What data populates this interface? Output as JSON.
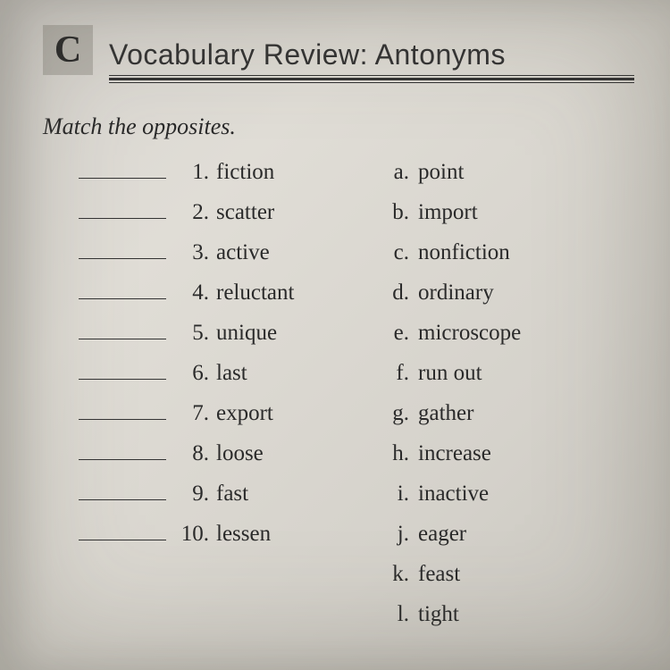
{
  "section_letter": "C",
  "title": "Vocabulary Review: Antonyms",
  "instruction": "Match the opposites.",
  "left_items": [
    {
      "num": "1.",
      "word": "fiction"
    },
    {
      "num": "2.",
      "word": "scatter"
    },
    {
      "num": "3.",
      "word": "active"
    },
    {
      "num": "4.",
      "word": "reluctant"
    },
    {
      "num": "5.",
      "word": "unique"
    },
    {
      "num": "6.",
      "word": "last"
    },
    {
      "num": "7.",
      "word": "export"
    },
    {
      "num": "8.",
      "word": "loose"
    },
    {
      "num": "9.",
      "word": "fast"
    },
    {
      "num": "10.",
      "word": "lessen"
    }
  ],
  "right_items": [
    {
      "label": "a.",
      "word": "point"
    },
    {
      "label": "b.",
      "word": "import"
    },
    {
      "label": "c.",
      "word": "nonfiction"
    },
    {
      "label": "d.",
      "word": "ordinary"
    },
    {
      "label": "e.",
      "word": "microscope"
    },
    {
      "label": "f.",
      "word": "run out"
    },
    {
      "label": "g.",
      "word": "gather"
    },
    {
      "label": "h.",
      "word": "increase"
    },
    {
      "label": "i.",
      "word": "inactive"
    },
    {
      "label": "j.",
      "word": "eager"
    },
    {
      "label": "k.",
      "word": "feast"
    },
    {
      "label": "l.",
      "word": "tight"
    }
  ],
  "colors": {
    "text": "#2a2a2a",
    "label_bg": "#b8b5ae",
    "paper_light": "#e0ddd6",
    "paper_dark": "#c8c5be"
  },
  "typography": {
    "title_fontsize": 32,
    "instruction_fontsize": 26,
    "body_fontsize": 25,
    "section_letter_fontsize": 42
  }
}
